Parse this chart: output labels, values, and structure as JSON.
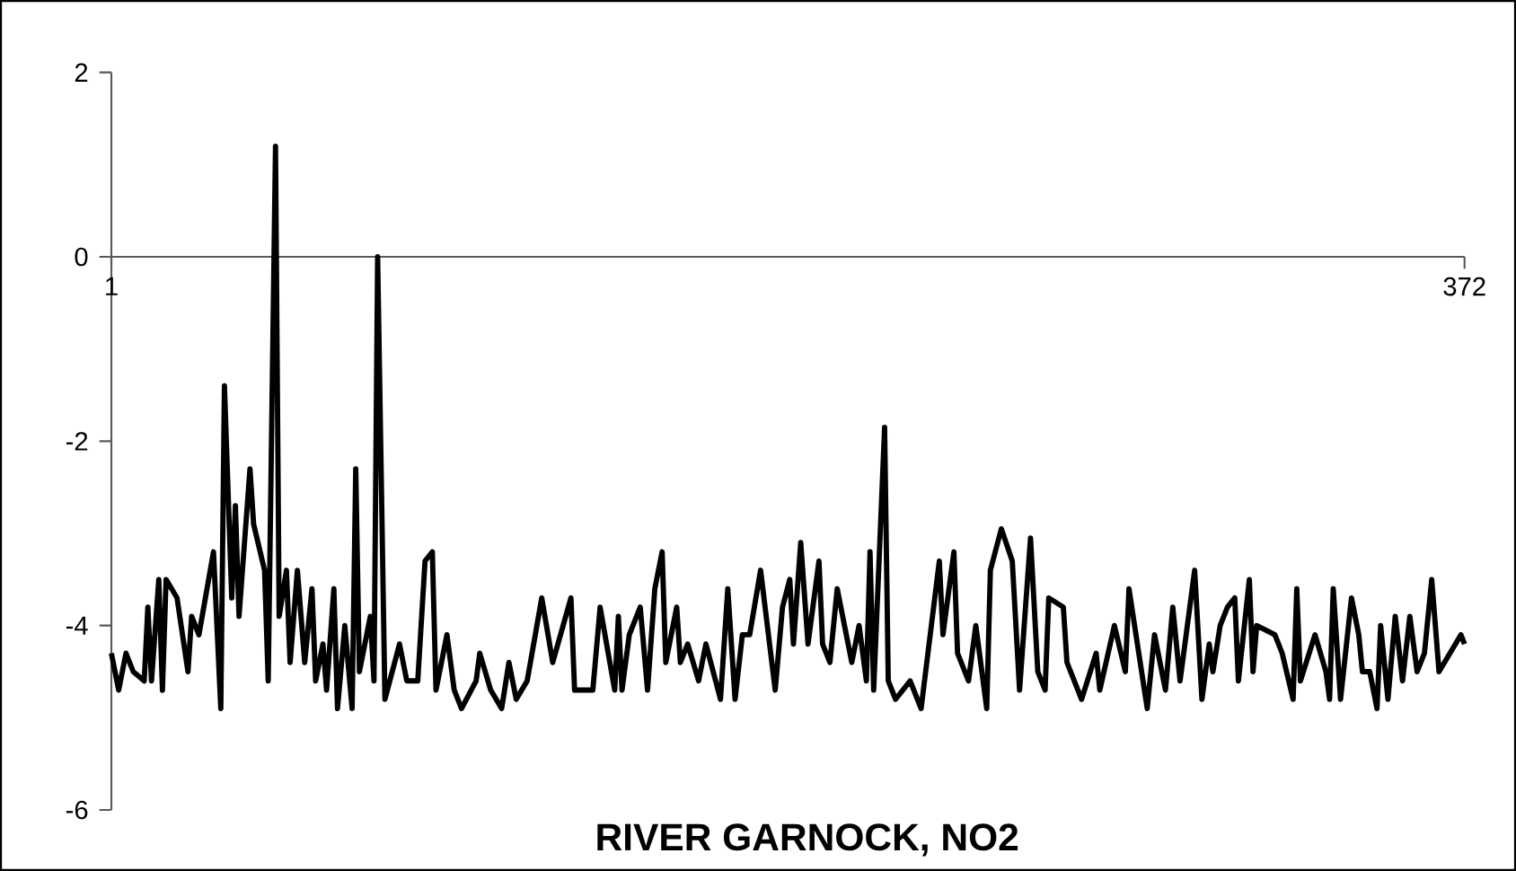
{
  "chart_data": {
    "type": "line",
    "title": "RIVER GARNOCK, NO2",
    "xlim": [
      1,
      372
    ],
    "xticks": [
      1,
      372
    ],
    "ylim": [
      -6,
      2
    ],
    "yticks": [
      -6,
      -4,
      -2,
      0,
      2
    ],
    "grid": false,
    "legend": false,
    "marker": "none",
    "line_style": "solid",
    "series": [
      {
        "color": "#000000",
        "x": [
          1,
          3,
          5,
          7,
          10,
          11,
          12,
          14,
          15,
          16,
          19,
          22,
          23,
          25,
          29,
          31,
          32,
          34,
          35,
          36,
          39,
          40,
          43,
          44,
          46,
          47,
          49,
          50,
          52,
          54,
          56,
          57,
          59,
          60,
          62,
          63,
          65,
          67,
          68,
          69,
          72,
          73,
          74,
          76,
          80,
          82,
          85,
          87,
          89,
          90,
          93,
          95,
          97,
          101,
          102,
          105,
          108,
          110,
          112,
          115,
          119,
          122,
          127,
          128,
          133,
          135,
          139,
          140,
          141,
          143,
          146,
          148,
          150,
          152,
          153,
          156,
          157,
          159,
          162,
          164,
          168,
          170,
          172,
          174,
          176,
          179,
          183,
          185,
          187,
          188,
          190,
          192,
          195,
          196,
          198,
          200,
          204,
          206,
          208,
          209,
          210,
          213,
          214,
          216,
          220,
          223,
          228,
          229,
          232,
          233,
          236,
          238,
          241,
          242,
          245,
          248,
          250,
          253,
          255,
          257,
          258,
          262,
          263,
          267,
          271,
          272,
          276,
          279,
          280,
          285,
          287,
          290,
          292,
          294,
          298,
          300,
          302,
          303,
          305,
          307,
          309,
          310,
          313,
          314,
          315,
          320,
          322,
          325,
          326,
          327,
          331,
          334,
          335,
          336,
          338,
          341,
          343,
          344,
          346,
          348,
          349,
          351,
          353,
          355,
          357,
          359,
          361,
          363,
          365,
          368,
          371,
          372
        ],
        "values": [
          -4.3,
          -4.7,
          -4.3,
          -4.5,
          -4.6,
          -3.8,
          -4.6,
          -3.5,
          -4.7,
          -3.5,
          -3.7,
          -4.5,
          -3.9,
          -4.1,
          -3.2,
          -4.9,
          -1.4,
          -3.7,
          -2.7,
          -3.9,
          -2.3,
          -2.9,
          -3.4,
          -4.6,
          1.2,
          -3.9,
          -3.4,
          -4.4,
          -3.4,
          -4.4,
          -3.6,
          -4.6,
          -4.2,
          -4.7,
          -3.6,
          -4.9,
          -4.0,
          -4.9,
          -2.3,
          -4.5,
          -3.9,
          -4.6,
          0,
          -4.8,
          -4.2,
          -4.6,
          -4.6,
          -3.3,
          -3.2,
          -4.7,
          -4.1,
          -4.7,
          -4.9,
          -4.6,
          -4.3,
          -4.7,
          -4.9,
          -4.4,
          -4.8,
          -4.6,
          -3.7,
          -4.4,
          -3.7,
          -4.7,
          -4.7,
          -3.8,
          -4.7,
          -3.9,
          -4.7,
          -4.1,
          -3.8,
          -4.7,
          -3.6,
          -3.2,
          -4.4,
          -3.8,
          -4.4,
          -4.2,
          -4.6,
          -4.2,
          -4.8,
          -3.6,
          -4.8,
          -4.1,
          -4.1,
          -3.4,
          -4.7,
          -3.8,
          -3.5,
          -4.2,
          -3.1,
          -4.2,
          -3.3,
          -4.2,
          -4.4,
          -3.6,
          -4.4,
          -4.0,
          -4.6,
          -3.2,
          -4.7,
          -1.85,
          -4.6,
          -4.8,
          -4.6,
          -4.9,
          -3.3,
          -4.1,
          -3.2,
          -4.3,
          -4.6,
          -4.0,
          -4.9,
          -3.4,
          -2.95,
          -3.3,
          -4.7,
          -3.05,
          -4.5,
          -4.7,
          -3.7,
          -3.8,
          -4.4,
          -4.8,
          -4.3,
          -4.7,
          -4.0,
          -4.5,
          -3.6,
          -4.9,
          -4.1,
          -4.7,
          -3.8,
          -4.6,
          -3.4,
          -4.8,
          -4.2,
          -4.5,
          -4.0,
          -3.8,
          -3.7,
          -4.6,
          -3.5,
          -4.5,
          -4.0,
          -4.1,
          -4.3,
          -4.8,
          -3.6,
          -4.6,
          -4.1,
          -4.5,
          -4.8,
          -3.6,
          -4.8,
          -3.7,
          -4.1,
          -4.5,
          -4.5,
          -4.9,
          -4.0,
          -4.8,
          -3.9,
          -4.6,
          -3.9,
          -4.5,
          -4.3,
          -3.5,
          -4.5,
          -4.3,
          -4.1,
          -4.2
        ]
      }
    ]
  }
}
